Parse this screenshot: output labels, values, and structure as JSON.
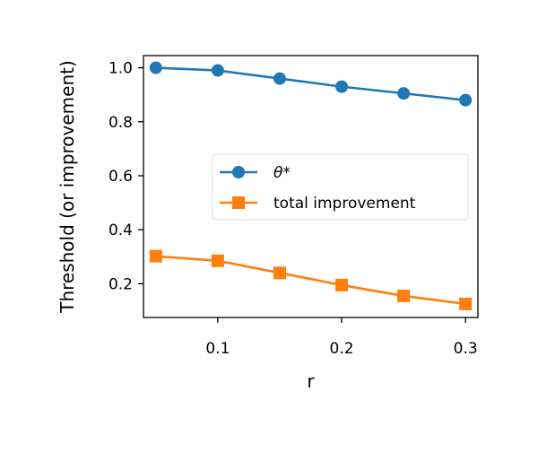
{
  "chart_data": {
    "type": "line",
    "title": "",
    "xlabel": "r",
    "ylabel": "Threshold (or improvement)",
    "x": [
      0.05,
      0.1,
      0.15,
      0.2,
      0.25,
      0.3
    ],
    "xlim": [
      0.04,
      0.31
    ],
    "ylim": [
      0.075,
      1.045
    ],
    "x_ticks": [
      0.1,
      0.2,
      0.3
    ],
    "x_tick_labels": [
      "0.1",
      "0.2",
      "0.3"
    ],
    "y_ticks": [
      0.2,
      0.4,
      0.6,
      0.8,
      1.0
    ],
    "y_tick_labels": [
      "0.2",
      "0.4",
      "0.6",
      "0.8",
      "1.0"
    ],
    "grid": false,
    "legend_position": "center-right",
    "series": [
      {
        "name": "θ*",
        "values": [
          1.0,
          0.99,
          0.96,
          0.93,
          0.905,
          0.88
        ],
        "color": "#1f77b4",
        "marker": "circle"
      },
      {
        "name": "total improvement",
        "values": [
          0.302,
          0.285,
          0.24,
          0.195,
          0.155,
          0.125
        ],
        "color": "#ff7f0e",
        "marker": "square"
      }
    ]
  }
}
